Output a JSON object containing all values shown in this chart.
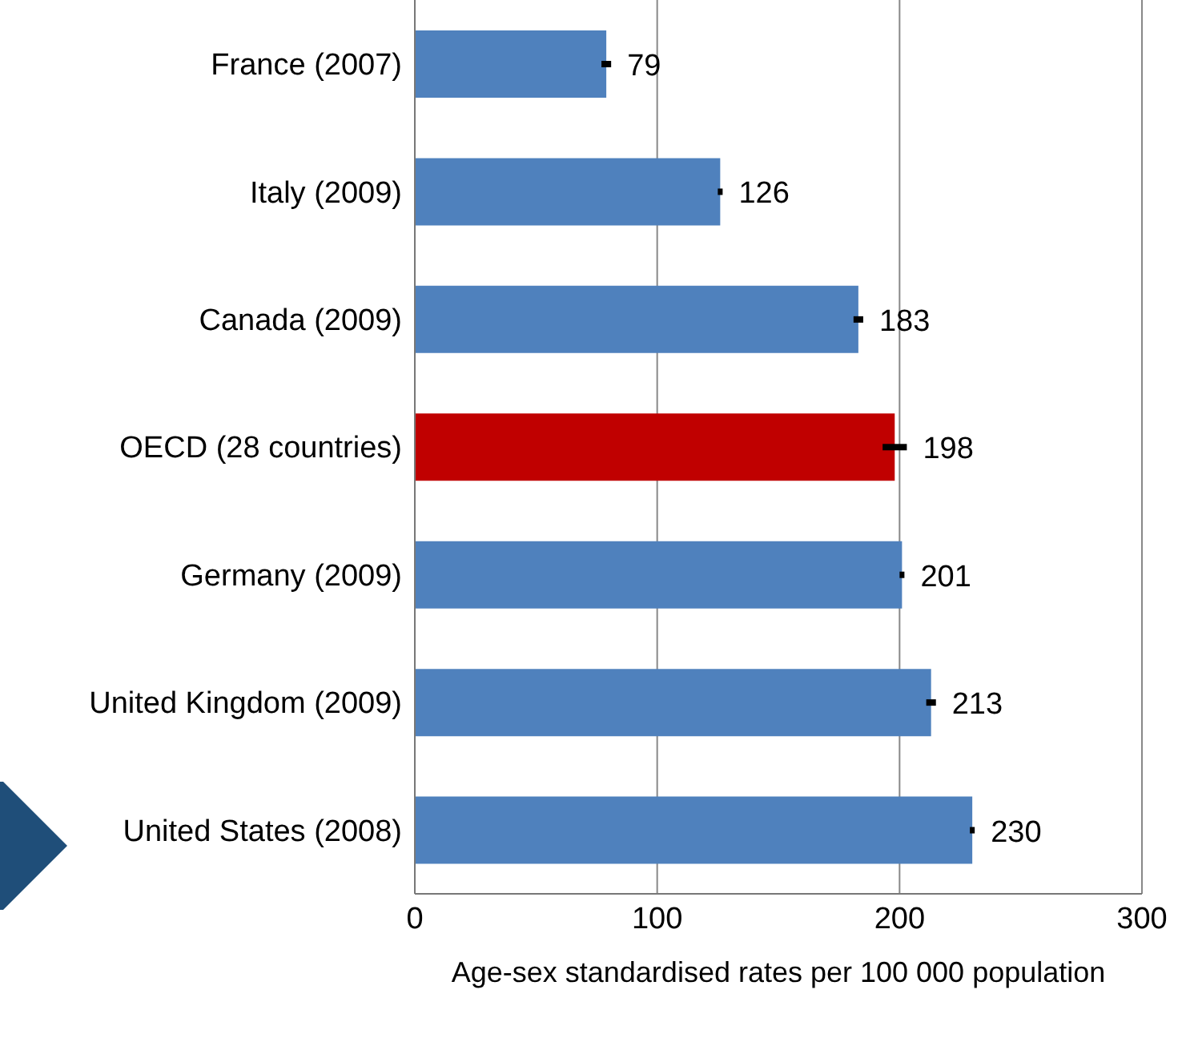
{
  "chart_data": {
    "type": "bar",
    "orientation": "horizontal",
    "xlabel": "Age-sex standardised rates per 100 000  population",
    "categories": [
      "France (2007)",
      "Italy (2009)",
      "Canada (2009)",
      "OECD (28 countries)",
      "Germany (2009)",
      "United Kingdom  (2009)",
      "United States (2008)"
    ],
    "values": [
      79,
      126,
      183,
      198,
      201,
      213,
      230
    ],
    "errors": [
      2,
      1,
      2,
      5,
      1,
      2,
      1
    ],
    "colors": [
      "#4f81bd",
      "#4f81bd",
      "#4f81bd",
      "#c00000",
      "#4f81bd",
      "#4f81bd",
      "#4f81bd"
    ],
    "xlim": [
      0,
      300
    ],
    "xticks": [
      0,
      100,
      200,
      300
    ],
    "grid": "x",
    "data_labels": true
  }
}
